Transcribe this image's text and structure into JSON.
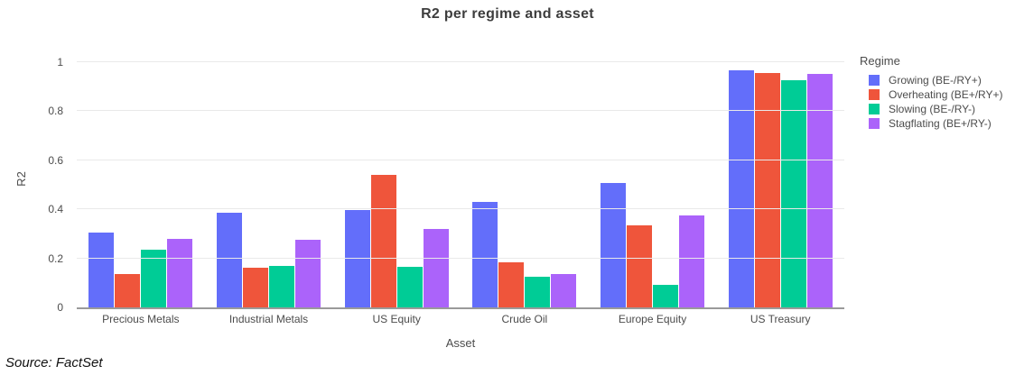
{
  "source": "Source: FactSet",
  "chart_data": {
    "type": "bar",
    "title": "R2 per regime and asset",
    "xlabel": "Asset",
    "ylabel": "R2",
    "legend_title": "Regime",
    "legend_position": "right",
    "grid": true,
    "ylim": [
      0,
      1.05
    ],
    "yticks": [
      0,
      0.2,
      0.4,
      0.6,
      0.8,
      1
    ],
    "ytick_labels": [
      "0",
      "0.2",
      "0.4",
      "0.6",
      "0.8",
      "1"
    ],
    "categories": [
      "Precious Metals",
      "Industrial Metals",
      "US Equity",
      "Crude Oil",
      "Europe Equity",
      "US Treasury"
    ],
    "series": [
      {
        "name": "Growing (BE-/RY+)",
        "color": "#636EFA",
        "values": [
          0.305,
          0.385,
          0.395,
          0.43,
          0.505,
          0.965
        ]
      },
      {
        "name": "Overheating (BE+/RY+)",
        "color": "#EF553B",
        "values": [
          0.135,
          0.16,
          0.54,
          0.185,
          0.335,
          0.955
        ]
      },
      {
        "name": "Slowing (BE-/RY-)",
        "color": "#00CC96",
        "values": [
          0.235,
          0.17,
          0.165,
          0.125,
          0.09,
          0.925
        ]
      },
      {
        "name": "Stagflating (BE+/RY-)",
        "color": "#AB63FA",
        "values": [
          0.28,
          0.275,
          0.32,
          0.135,
          0.375,
          0.95
        ]
      }
    ]
  }
}
